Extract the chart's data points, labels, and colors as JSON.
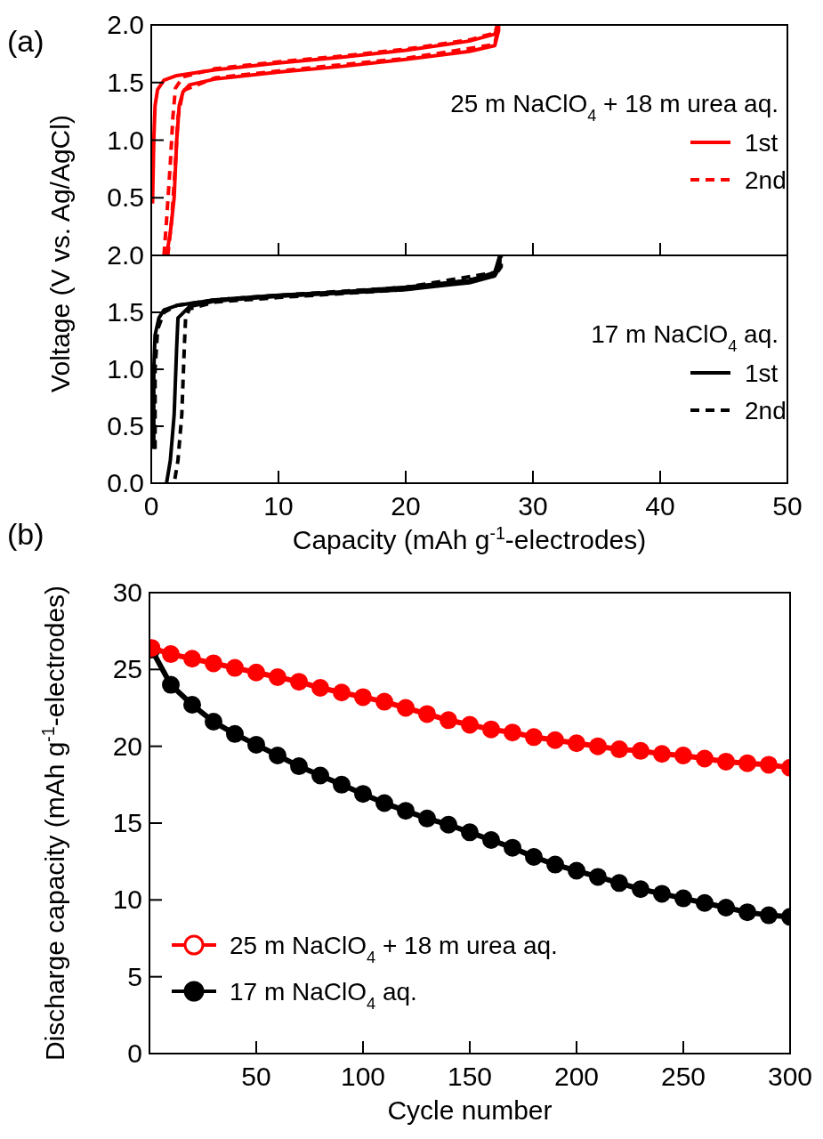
{
  "chart_data": [
    {
      "type": "line",
      "annotations": [
        "(a)"
      ],
      "ylabel": "Voltage (V vs. Ag/AgCl)",
      "legend_title": "25 m NaClO$_{4}$ + 18 m urea aq.",
      "legend": "right",
      "tick_labels": "y",
      "marker": "none",
      "xlim": [
        0,
        50
      ],
      "xticks": [
        {
          "value": 0,
          "label": null
        },
        {
          "value": 10,
          "label": null
        },
        {
          "value": 20,
          "label": null
        },
        {
          "value": 30,
          "label": null
        },
        {
          "value": 40,
          "label": null
        },
        {
          "value": 50,
          "label": null
        }
      ],
      "ylim": [
        0,
        2
      ],
      "yticks": [
        {
          "value": 0,
          "label": null
        },
        {
          "value": 0.5,
          "label": "0.5"
        },
        {
          "value": 1,
          "label": "1.0"
        },
        {
          "value": 1.5,
          "label": "1.5"
        },
        {
          "value": 2,
          "label": "2.0"
        }
      ],
      "series": [
        {
          "name": "1st",
          "color": "#ff0000",
          "line_style": "solid",
          "x": [
            0.1,
            0.2,
            0.3,
            0.5,
            1,
            2,
            5,
            10,
            15,
            20,
            25,
            27,
            27.3,
            27.3,
            27,
            25,
            20,
            15,
            10,
            5,
            3,
            2.5,
            2.2,
            2,
            1.8,
            1.5,
            1.2
          ],
          "values": [
            0.45,
            1.0,
            1.3,
            1.44,
            1.52,
            1.56,
            1.61,
            1.67,
            1.72,
            1.78,
            1.86,
            1.92,
            2.0,
            1.95,
            1.82,
            1.77,
            1.7,
            1.64,
            1.59,
            1.53,
            1.48,
            1.42,
            1.3,
            1.0,
            0.5,
            0.2,
            0.0
          ]
        },
        {
          "name": "2nd",
          "color": "#ff0000",
          "line_style": "dashed",
          "x": [
            1.0,
            1.2,
            1.5,
            1.7,
            1.9,
            2.5,
            5,
            10,
            15,
            20,
            25,
            27,
            27.2,
            27.2,
            27,
            20,
            10,
            5,
            2.5,
            2.1,
            1.9,
            1.6,
            1.3
          ],
          "values": [
            0.0,
            0.3,
            0.8,
            1.2,
            1.45,
            1.55,
            1.62,
            1.68,
            1.73,
            1.79,
            1.87,
            1.93,
            2.0,
            1.95,
            1.83,
            1.71,
            1.6,
            1.54,
            1.43,
            1.2,
            0.8,
            0.3,
            0.0
          ]
        }
      ]
    },
    {
      "type": "line",
      "xlabel": "Capacity (mAh g$^{-1}$-electrodes)",
      "legend_title": "17 m NaClO$_{4}$ aq.",
      "legend": "right",
      "marker": "none",
      "xlim": [
        0,
        50
      ],
      "xticks": [
        0,
        10,
        20,
        30,
        40,
        50
      ],
      "ylim": [
        0,
        2
      ],
      "yticks": [
        {
          "value": 0,
          "label": "0.0"
        },
        {
          "value": 0.5,
          "label": "0.5"
        },
        {
          "value": 1,
          "label": "1.0"
        },
        {
          "value": 1.5,
          "label": "1.5"
        },
        {
          "value": 2,
          "label": "2.0"
        }
      ],
      "series": [
        {
          "name": "1st",
          "color": "#000000",
          "line_style": "solid",
          "x": [
            0.2,
            0.2,
            0.3,
            0.6,
            1,
            2,
            5,
            10,
            15,
            20,
            25,
            27,
            27.4,
            27.4,
            27,
            25,
            20,
            15,
            10,
            5,
            3,
            2.1,
            2.0,
            1.8,
            1.5,
            1.2
          ],
          "values": [
            0.3,
            1.0,
            1.3,
            1.45,
            1.52,
            1.56,
            1.61,
            1.65,
            1.68,
            1.72,
            1.78,
            1.85,
            2.0,
            1.9,
            1.82,
            1.76,
            1.7,
            1.67,
            1.64,
            1.6,
            1.55,
            1.45,
            1.2,
            0.6,
            0.2,
            0.0
          ]
        },
        {
          "name": "2nd",
          "color": "#000000",
          "line_style": "dashed",
          "x": [
            0.3,
            0.3,
            0.5,
            1,
            2,
            5,
            10,
            20,
            27,
            27.5,
            27.5,
            27,
            20,
            10,
            5,
            3,
            2.7,
            2.6,
            2.4,
            2.1,
            1.8
          ],
          "values": [
            0.3,
            1.0,
            1.35,
            1.5,
            1.56,
            1.61,
            1.65,
            1.72,
            1.85,
            2.0,
            1.9,
            1.82,
            1.7,
            1.63,
            1.59,
            1.53,
            1.45,
            1.2,
            0.6,
            0.2,
            0.0
          ]
        }
      ]
    },
    {
      "type": "line",
      "annotations": [
        "(b)"
      ],
      "xlabel": "Cycle number",
      "ylabel": "Discharge capacity (mAh g$^{-1}$-electrodes)",
      "legend": "bottom left",
      "marker": "circle",
      "xlim": [
        0,
        300
      ],
      "xticks": [
        50,
        100,
        150,
        200,
        250,
        300
      ],
      "ylim": [
        0,
        30
      ],
      "yticks": [
        0,
        5,
        10,
        15,
        20,
        25,
        30
      ],
      "series": [
        {
          "name": "25 m NaClO$_{4}$ + 18 m urea aq.",
          "color": "#ff0000",
          "x": [
            1,
            10,
            20,
            30,
            40,
            50,
            60,
            70,
            80,
            90,
            100,
            110,
            120,
            130,
            140,
            150,
            160,
            170,
            180,
            190,
            200,
            210,
            220,
            230,
            240,
            250,
            260,
            270,
            280,
            290,
            300
          ],
          "values": [
            26.4,
            26.0,
            25.7,
            25.4,
            25.1,
            24.8,
            24.5,
            24.2,
            23.8,
            23.5,
            23.2,
            22.9,
            22.5,
            22.1,
            21.7,
            21.4,
            21.1,
            20.9,
            20.6,
            20.4,
            20.2,
            20.0,
            19.8,
            19.7,
            19.5,
            19.4,
            19.2,
            19.0,
            18.9,
            18.8,
            18.6
          ]
        },
        {
          "name": "17 m NaClO$_{4}$ aq.",
          "color": "#000000",
          "x": [
            1,
            10,
            20,
            30,
            40,
            50,
            60,
            70,
            80,
            90,
            100,
            110,
            120,
            130,
            140,
            150,
            160,
            170,
            180,
            190,
            200,
            210,
            220,
            230,
            240,
            250,
            260,
            270,
            280,
            290,
            300
          ],
          "values": [
            26.3,
            24.0,
            22.7,
            21.6,
            20.8,
            20.1,
            19.4,
            18.7,
            18.1,
            17.5,
            16.9,
            16.3,
            15.8,
            15.3,
            14.9,
            14.4,
            13.9,
            13.4,
            12.8,
            12.3,
            11.9,
            11.5,
            11.1,
            10.7,
            10.4,
            10.1,
            9.8,
            9.5,
            9.2,
            9.0,
            8.9
          ]
        }
      ]
    }
  ]
}
